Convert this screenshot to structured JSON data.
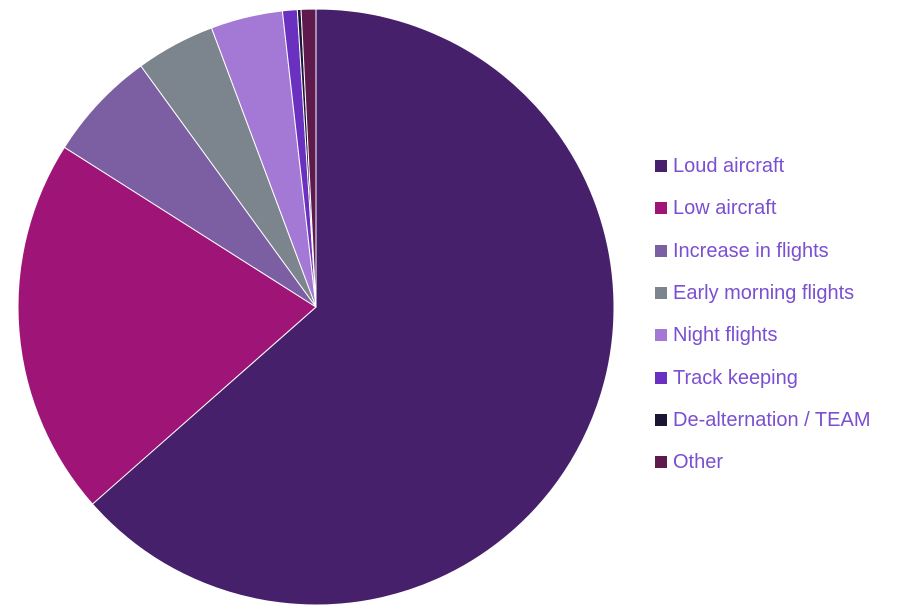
{
  "chart_data": {
    "type": "pie",
    "title": "",
    "categories": [
      "Loud aircraft",
      "Low aircraft",
      "Increase in flights",
      "Early morning flights",
      "Night flights",
      "Track keeping",
      "De-alternation / TEAM",
      "Other"
    ],
    "values": [
      63.5,
      20.5,
      6.0,
      4.3,
      3.9,
      0.8,
      0.2,
      0.8
    ],
    "unit": "%",
    "colors": [
      "#47206b",
      "#9f1577",
      "#7c5ea3",
      "#7c858d",
      "#a479d5",
      "#6a30c0",
      "#1b1535",
      "#5e1a4d"
    ],
    "start_angle_deg": 0,
    "direction": "clockwise",
    "legend": {
      "position": "right",
      "text_color": "#7a4fd1"
    }
  }
}
